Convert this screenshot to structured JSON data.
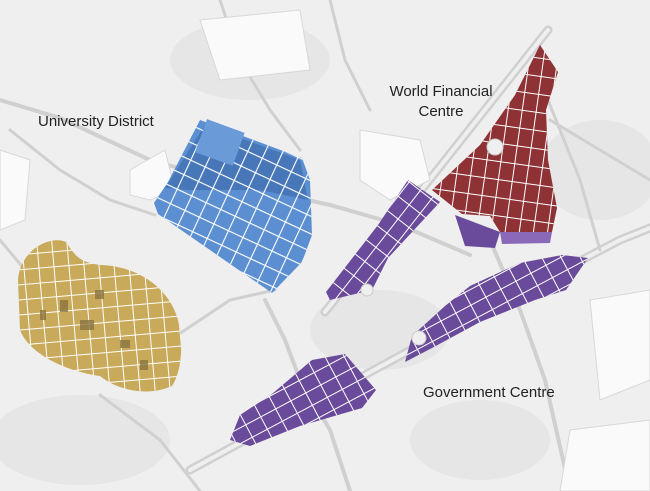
{
  "map": {
    "labels": {
      "university": "University District",
      "financial_line1": "World Financial",
      "financial_line2": "Centre",
      "government": "Government Centre"
    },
    "colors": {
      "background": "#efefef",
      "road": "#d3d3d3",
      "university_district": "#5b8fd1",
      "residential_district": "#c9a95a",
      "world_financial_centre": "#8e3236",
      "government_centre": "#6a4a9a"
    }
  }
}
